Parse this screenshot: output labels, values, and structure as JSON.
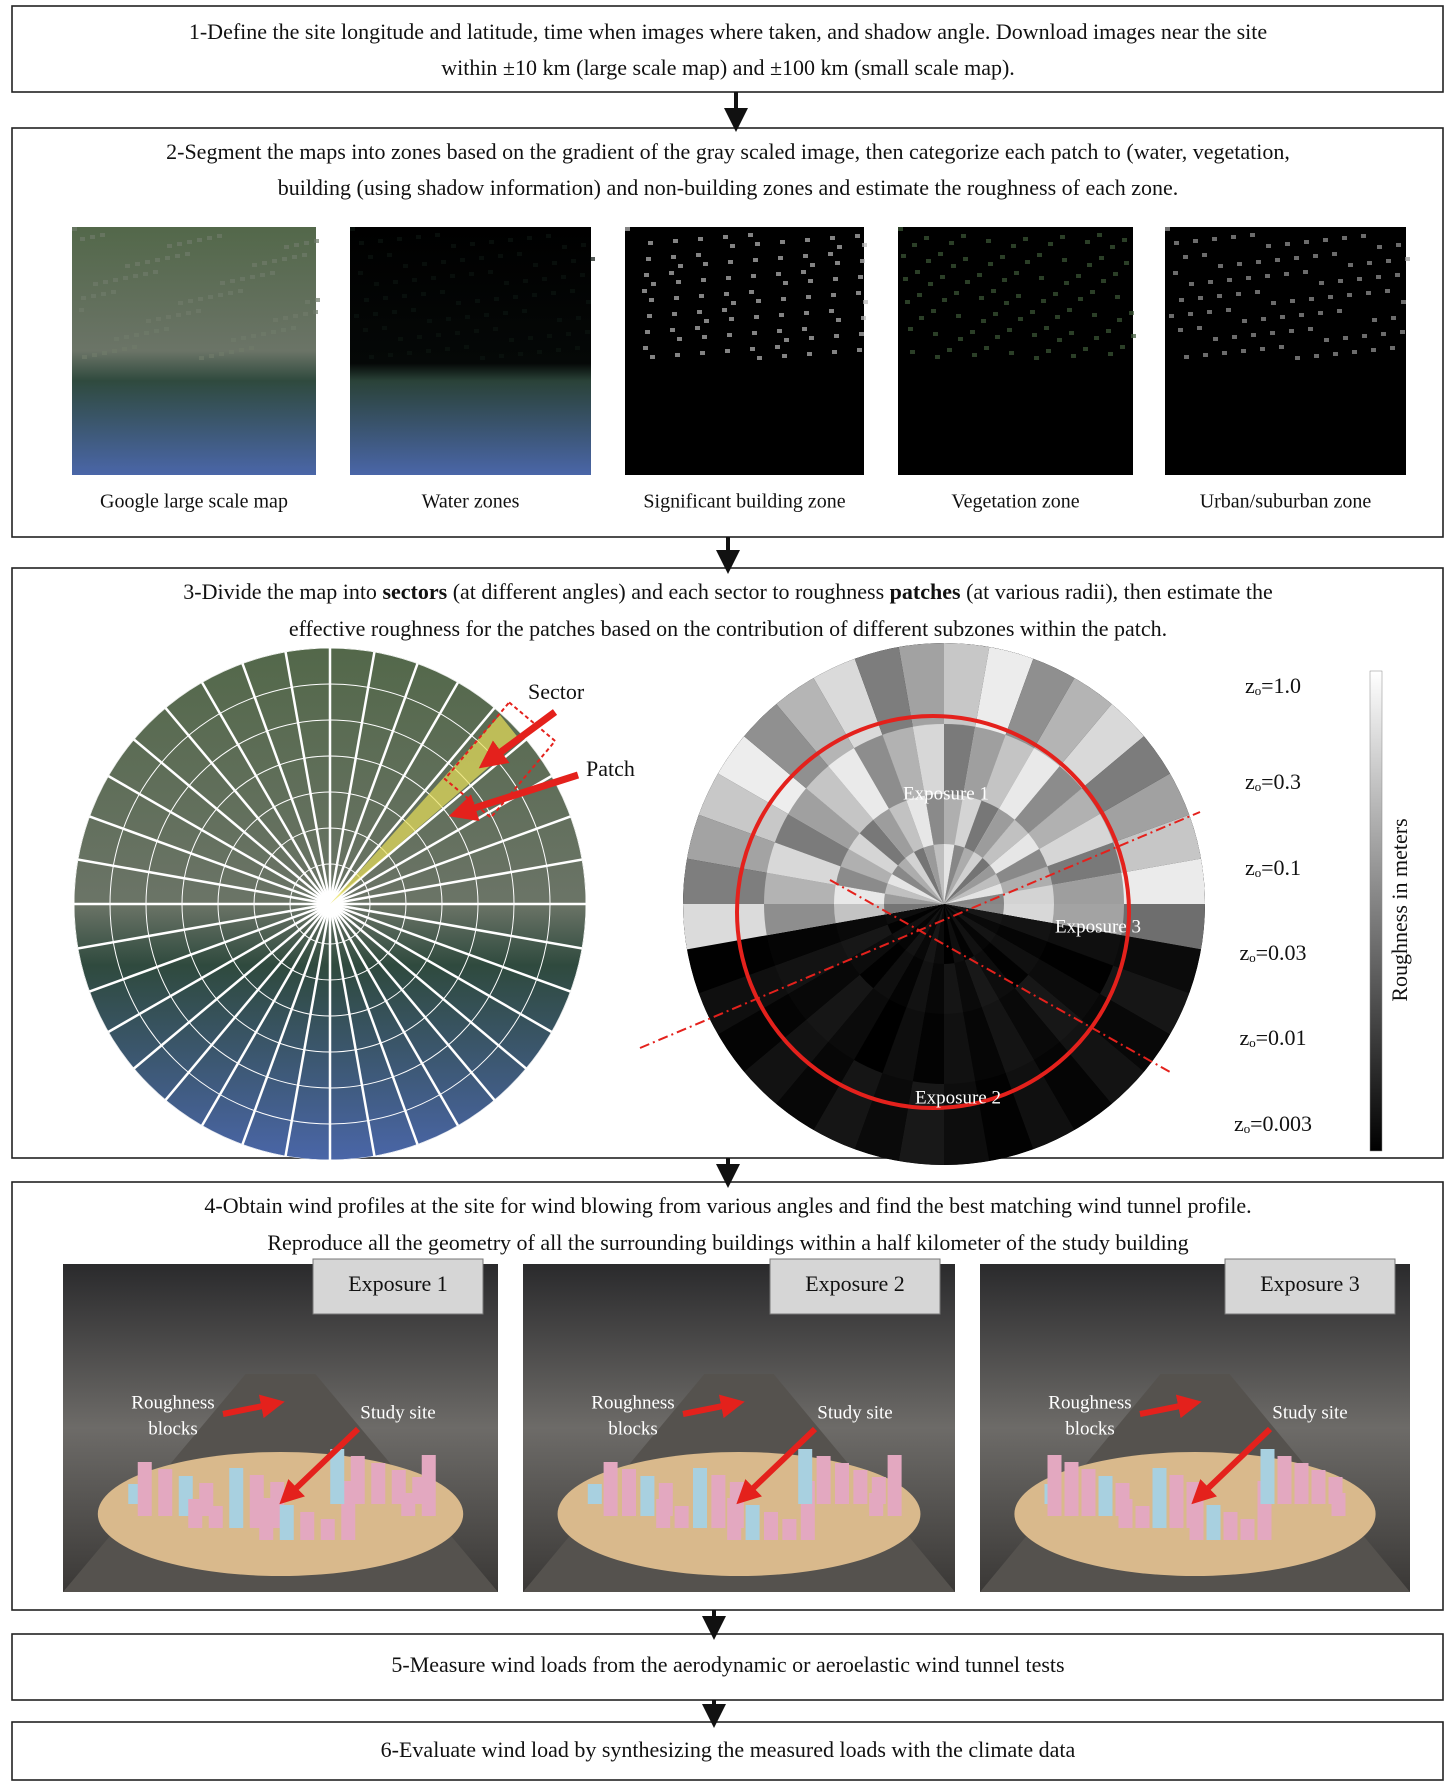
{
  "steps": [
    {
      "lines": [
        "1-Define the site longitude and latitude, time when images where taken, and shadow angle. Download images near the site",
        "within ±10 km (large scale map) and ±100 km (small scale map)."
      ]
    },
    {
      "lines": [
        "2-Segment the maps into zones based on the gradient of the gray scaled image, then categorize each patch to (water, vegetation,",
        "building (using shadow information) and non-building zones and estimate the roughness of each zone."
      ],
      "images": [
        "Google large scale map",
        "Water zones",
        "Significant building zone",
        "Vegetation zone",
        "Urban/suburban zone"
      ]
    },
    {
      "lines": [
        [
          "3-Divide the map into ",
          "sectors",
          " (at different angles) and each sector to roughness ",
          "patches",
          " (at various radii), then estimate the"
        ],
        "effective roughness for the patches based on the contribution of different subzones within the patch."
      ],
      "sector_label": "Sector",
      "patch_label": "Patch",
      "exposures": [
        "Exposure 1",
        "Exposure 3",
        "Exposure 2"
      ],
      "roughness_levels": [
        "zₒ=1.0",
        "zₒ=0.3",
        "zₒ=0.1",
        "zₒ=0.03",
        "zₒ=0.01",
        "zₒ=0.003"
      ],
      "colorbar_label": "Roughness in meters"
    },
    {
      "lines": [
        "4-Obtain wind profiles at the site for wind blowing from various angles and find the best matching wind tunnel profile.",
        "Reproduce all the geometry of all the surrounding buildings within a half kilometer of the study building"
      ],
      "photos": [
        {
          "exposure": "Exposure 1",
          "blocks": [
            "Roughness",
            "blocks"
          ],
          "study_site": "Study site"
        },
        {
          "exposure": "Exposure 2",
          "blocks": [
            "Roughness",
            "blocks"
          ],
          "study_site": "Study site"
        },
        {
          "exposure": "Exposure 3",
          "blocks": [
            "Roughness",
            "blocks"
          ],
          "study_site": "Study site"
        }
      ]
    },
    {
      "lines": [
        "5-Measure wind loads from the aerodynamic or aeroelastic wind tunnel tests"
      ]
    },
    {
      "lines": [
        "6-Evaluate wind load by synthesizing the measured loads with the climate data"
      ]
    }
  ]
}
